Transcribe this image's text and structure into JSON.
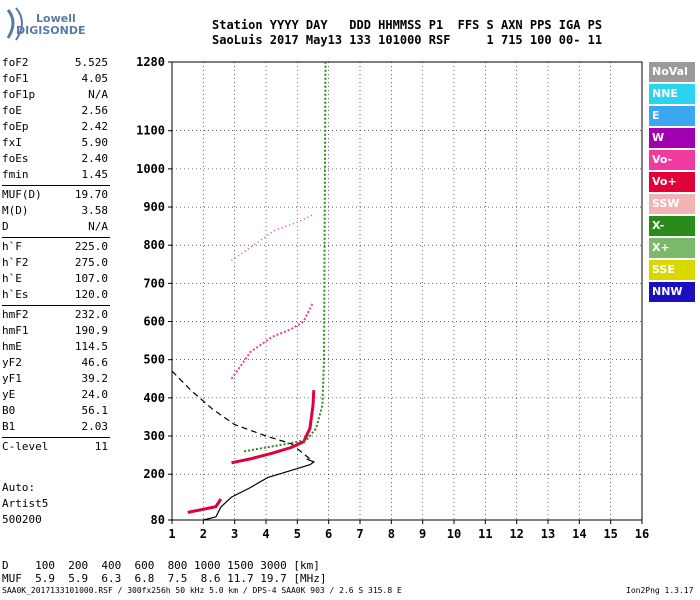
{
  "logo": {
    "line1": "Lowell",
    "line2": "DIGISONDE"
  },
  "header": {
    "line1": "Station YYYY DAY   DDD HHMMSS P1  FFS S AXN PPS IGA PS",
    "line2": "SaoLuis 2017 May13 133 101000 RSF     1 715 100 00- 11"
  },
  "params": {
    "group1": [
      {
        "name": "foF2",
        "value": "5.525"
      },
      {
        "name": "foF1",
        "value": "4.05"
      },
      {
        "name": "foF1p",
        "value": "N/A"
      },
      {
        "name": "foE",
        "value": "2.56"
      },
      {
        "name": "foEp",
        "value": "2.42"
      },
      {
        "name": "fxI",
        "value": "5.90"
      },
      {
        "name": "foEs",
        "value": "2.40"
      },
      {
        "name": "fmin",
        "value": "1.45"
      }
    ],
    "group2": [
      {
        "name": "MUF(D)",
        "value": "19.70"
      },
      {
        "name": "M(D)",
        "value": "3.58"
      },
      {
        "name": "D",
        "value": "N/A"
      }
    ],
    "group3": [
      {
        "name": "h`F",
        "value": "225.0"
      },
      {
        "name": "h`F2",
        "value": "275.0"
      },
      {
        "name": "h`E",
        "value": "107.0"
      },
      {
        "name": "h`Es",
        "value": "120.0"
      }
    ],
    "group4": [
      {
        "name": "hmF2",
        "value": "232.0"
      },
      {
        "name": "hmF1",
        "value": "190.9"
      },
      {
        "name": "hmE",
        "value": "114.5"
      },
      {
        "name": "yF2",
        "value": "46.6"
      },
      {
        "name": "yF1",
        "value": "39.2"
      },
      {
        "name": "yE",
        "value": "24.0"
      },
      {
        "name": "B0",
        "value": "56.1"
      },
      {
        "name": "B1",
        "value": "2.03"
      }
    ],
    "group5": [
      {
        "name": "C-level",
        "value": "11"
      }
    ]
  },
  "auto": {
    "line1": "Auto:",
    "line2": "Artist5",
    "line3": "500200"
  },
  "legend": [
    {
      "label": "NoVal",
      "color": "#9a9a9a"
    },
    {
      "label": "NNE",
      "color": "#2ad4f0"
    },
    {
      "label": "E",
      "color": "#3aa8f0"
    },
    {
      "label": "W",
      "color": "#a000b0"
    },
    {
      "label": "Vo-",
      "color": "#f03aa0"
    },
    {
      "label": "Vo+",
      "color": "#e0003a"
    },
    {
      "label": "SSW",
      "color": "#f0b4b4"
    },
    {
      "label": "X-",
      "color": "#2a8a1a"
    },
    {
      "label": "X+",
      "color": "#7ab86a"
    },
    {
      "label": "SSE",
      "color": "#d8d800"
    },
    {
      "label": "NNW",
      "color": "#1a10c0"
    }
  ],
  "bottom": {
    "d_row": "D    100  200  400  600  800 1000 1500 3000 [km]",
    "muf_row": "MUF  5.9  5.9  6.3  6.8  7.5  8.6 11.7 19.7 [MHz]"
  },
  "footer": {
    "left": "SAA0K_2017133101000.RSF / 300fx256h 50 kHz 5.0 km / DPS-4 SAA0K 903 / 2.6 S 315.8 E",
    "right": "Ion2Png 1.3.17"
  },
  "chart_data": {
    "type": "scatter",
    "x_ticks": [
      "1",
      "2",
      "3",
      "4",
      "5",
      "6",
      "7",
      "8",
      "9",
      "10",
      "11",
      "12",
      "13",
      "14",
      "15",
      "16"
    ],
    "y_ticks": [
      "80",
      "200",
      "300",
      "400",
      "500",
      "600",
      "700",
      "800",
      "900",
      "1000",
      "1100",
      "1280"
    ],
    "xlim": [
      1,
      16
    ],
    "ylim": [
      80,
      1280
    ],
    "xlabel": "",
    "ylabel": "",
    "grid": true,
    "legend_position": "right",
    "curves": {
      "profile_solid": [
        [
          2.0,
          80
        ],
        [
          2.4,
          88
        ],
        [
          2.56,
          114
        ],
        [
          2.9,
          140
        ],
        [
          3.5,
          165
        ],
        [
          4.05,
          191
        ],
        [
          4.8,
          210
        ],
        [
          5.4,
          225
        ],
        [
          5.525,
          232
        ],
        [
          5.3,
          240
        ]
      ],
      "profile_dashed": [
        [
          1.0,
          470
        ],
        [
          1.6,
          420
        ],
        [
          2.3,
          370
        ],
        [
          3.0,
          330
        ],
        [
          4.0,
          300
        ],
        [
          4.8,
          280
        ],
        [
          5.525,
          232
        ]
      ],
      "o_trace_F": [
        [
          2.9,
          230
        ],
        [
          3.5,
          240
        ],
        [
          4.2,
          255
        ],
        [
          4.8,
          270
        ],
        [
          5.2,
          285
        ],
        [
          5.4,
          320
        ],
        [
          5.5,
          380
        ],
        [
          5.525,
          420
        ]
      ],
      "x_trace_F": [
        [
          3.3,
          260
        ],
        [
          4.0,
          270
        ],
        [
          4.7,
          280
        ],
        [
          5.3,
          290
        ],
        [
          5.6,
          320
        ],
        [
          5.8,
          380
        ],
        [
          5.85,
          500
        ],
        [
          5.9,
          1280
        ]
      ],
      "E_trace": [
        [
          1.5,
          100
        ],
        [
          2.0,
          108
        ],
        [
          2.4,
          115
        ],
        [
          2.56,
          135
        ]
      ],
      "second_hop": [
        [
          2.9,
          450
        ],
        [
          3.5,
          520
        ],
        [
          4.2,
          560
        ],
        [
          4.8,
          580
        ],
        [
          5.2,
          600
        ],
        [
          5.5,
          650
        ]
      ],
      "third_hop": [
        [
          2.9,
          760
        ],
        [
          3.6,
          800
        ],
        [
          4.3,
          840
        ],
        [
          5.0,
          860
        ],
        [
          5.5,
          880
        ]
      ]
    }
  }
}
